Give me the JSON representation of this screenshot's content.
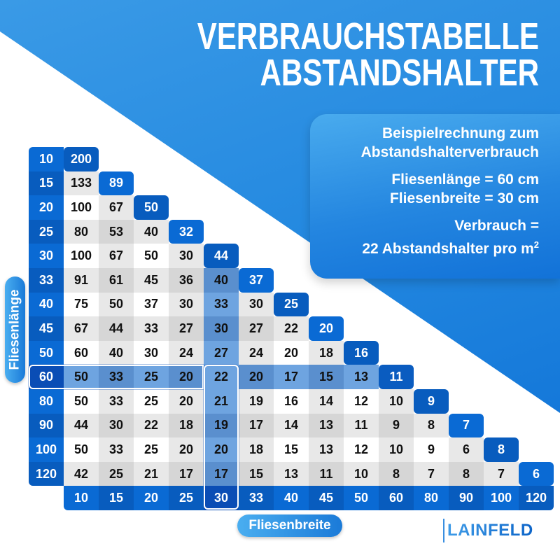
{
  "header": {
    "title_line1": "VERBRAUCHSTABELLE",
    "title_line2": "ABSTANDSHALTER"
  },
  "example_box": {
    "heading_line1": "Beispielrechnung zum",
    "heading_line2": "Abstandshalterverbrauch",
    "length_line": "Fliesenlänge = 60 cm",
    "width_line": "Fliesenbreite = 30 cm",
    "result_line1": "Verbrauch =",
    "result_line2": "22 Abstandshalter pro m",
    "result_superscript": "2"
  },
  "axis_labels": {
    "rows": "Fliesenlänge",
    "columns": "Fliesenbreite"
  },
  "brand": {
    "name": "LAINFELD"
  },
  "colors": {
    "brand_blue": "#1a7ad8",
    "label_blue_light": "#0a6ad4",
    "label_blue_dark": "#085cbe",
    "highlight_label": "#0a4db5",
    "highlight_cell_light": "#6ea4e0",
    "highlight_cell_dark": "#5a8fce",
    "cell_white": "#ffffff",
    "cell_gray": "#e8e8e8",
    "cell_gray_dark": "#d6d6d6"
  },
  "highlight": {
    "row": "60",
    "column": "30",
    "value": "22"
  },
  "chart_data": {
    "type": "table",
    "title": "VERBRAUCHSTABELLE ABSTANDSHALTER",
    "row_axis_label": "Fliesenlänge",
    "column_axis_label": "Fliesenbreite",
    "unit": "Abstandshalter pro m²",
    "row_headers": [
      "10",
      "15",
      "20",
      "25",
      "30",
      "33",
      "40",
      "45",
      "50",
      "60",
      "80",
      "90",
      "100",
      "120"
    ],
    "column_headers": [
      "10",
      "15",
      "20",
      "25",
      "30",
      "33",
      "40",
      "45",
      "50",
      "60",
      "80",
      "90",
      "100",
      "120"
    ],
    "rows": [
      [
        "200"
      ],
      [
        "133",
        "89"
      ],
      [
        "100",
        "67",
        "50"
      ],
      [
        "80",
        "53",
        "40",
        "32"
      ],
      [
        "100",
        "67",
        "50",
        "30",
        "44"
      ],
      [
        "91",
        "61",
        "45",
        "36",
        "40",
        "37"
      ],
      [
        "75",
        "50",
        "37",
        "30",
        "33",
        "30",
        "25"
      ],
      [
        "67",
        "44",
        "33",
        "27",
        "30",
        "27",
        "22",
        "20"
      ],
      [
        "60",
        "40",
        "30",
        "24",
        "27",
        "24",
        "20",
        "18",
        "16"
      ],
      [
        "50",
        "33",
        "25",
        "20",
        "22",
        "20",
        "17",
        "15",
        "13",
        "11"
      ],
      [
        "50",
        "33",
        "25",
        "20",
        "21",
        "19",
        "16",
        "14",
        "12",
        "10",
        "9"
      ],
      [
        "44",
        "30",
        "22",
        "18",
        "19",
        "17",
        "14",
        "13",
        "11",
        "9",
        "8",
        "7"
      ],
      [
        "50",
        "33",
        "25",
        "20",
        "20",
        "18",
        "15",
        "13",
        "12",
        "10",
        "9",
        "6",
        "8"
      ],
      [
        "42",
        "25",
        "21",
        "17",
        "17",
        "15",
        "13",
        "11",
        "10",
        "8",
        "7",
        "8",
        "7",
        "6"
      ]
    ]
  }
}
